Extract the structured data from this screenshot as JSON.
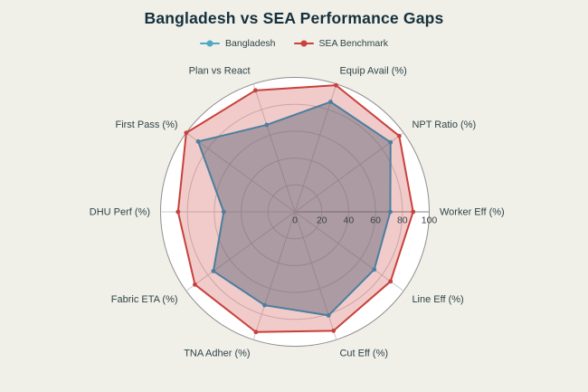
{
  "title": "Bangladesh vs SEA Performance Gaps",
  "colors": {
    "background": "#F0EFE8",
    "plot_fill": "#FFFFFF",
    "grid": "#CDCDCD",
    "outer_ring": "#8F8F8F",
    "radial_axis_line": "#9A9A9A",
    "axis_label_text": "#2F4549",
    "tick_label_text": "#3C4348",
    "title_text": "#15303C",
    "bangladesh": "#4FA8C4",
    "sea_benchmark": "#C9403C"
  },
  "legend": {
    "items": [
      {
        "label": "Bangladesh"
      },
      {
        "label": "SEA Benchmark"
      }
    ]
  },
  "chart_data": {
    "type": "radar",
    "title": "Bangladesh vs SEA Performance Gaps",
    "categories": [
      "Worker Eff (%)",
      "NPT Ratio (%)",
      "Equip Avail (%)",
      "Plan vs React",
      "First Pass (%)",
      "DHU Perf (%)",
      "Fabric ETA (%)",
      "TNA Adher (%)",
      "Cut Eff (%)",
      "Line Eff (%)"
    ],
    "series": [
      {
        "name": "Bangladesh",
        "color": "#4FA8C4",
        "stroke": "#4C7E9F",
        "fill": "rgba(88,98,114,0.45)",
        "values": [
          71,
          88,
          86,
          68,
          89,
          53,
          75,
          73,
          81,
          73
        ]
      },
      {
        "name": "SEA Benchmark",
        "color": "#C9403C",
        "stroke": "#C9403C",
        "fill": "rgba(201,64,60,0.27)",
        "values": [
          88,
          96,
          99,
          95,
          100,
          87,
          92,
          94,
          93,
          88
        ]
      }
    ],
    "radial_ticks": [
      0,
      20,
      40,
      60,
      80,
      100
    ],
    "radial_range": [
      0,
      100
    ],
    "rings": [
      20,
      40,
      60,
      80,
      100
    ],
    "start_angle_deg": 0,
    "direction": "counterclockwise",
    "grid": true,
    "legend_position": "top-center"
  }
}
